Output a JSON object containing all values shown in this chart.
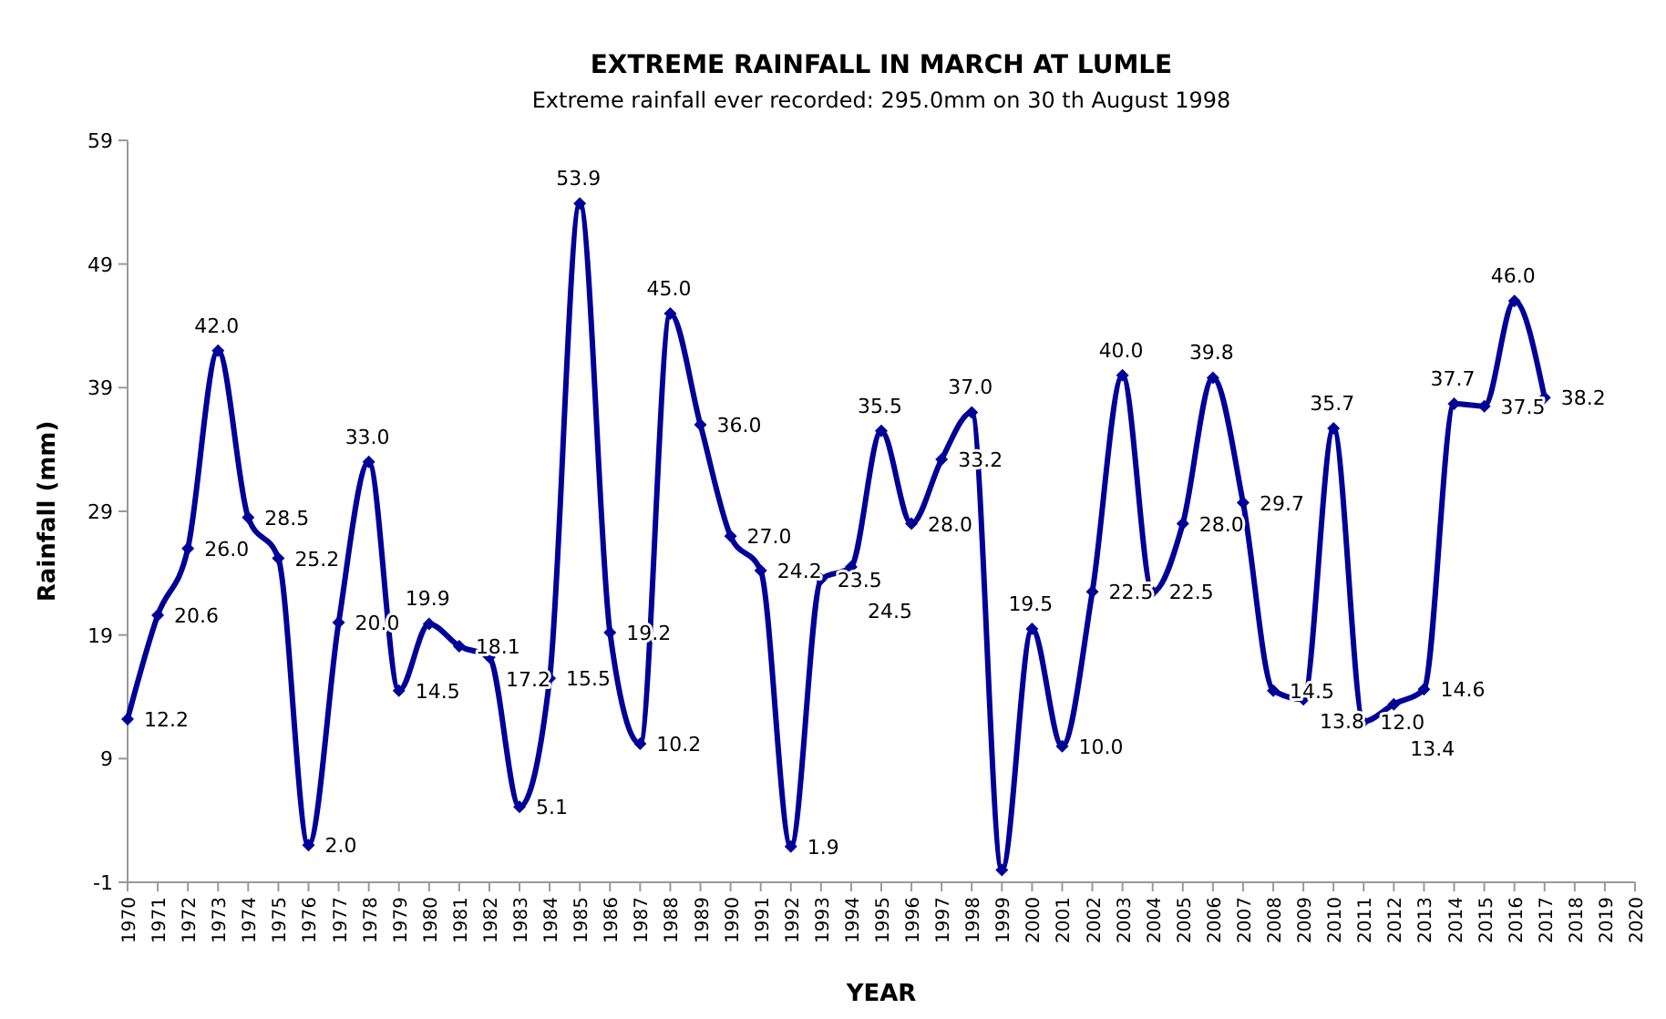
{
  "chart_data": {
    "type": "line",
    "title": "EXTREME RAINFALL IN MARCH AT LUMLE",
    "subtitle": "Extreme rainfall ever recorded: 295.0mm on 30 th August 1998",
    "xlabel": "YEAR",
    "ylabel": "Rainfall (mm)",
    "x": [
      1970,
      1971,
      1972,
      1973,
      1974,
      1975,
      1976,
      1977,
      1978,
      1979,
      1980,
      1981,
      1982,
      1983,
      1984,
      1985,
      1986,
      1987,
      1988,
      1989,
      1990,
      1991,
      1992,
      1993,
      1994,
      1995,
      1996,
      1997,
      1998,
      1999,
      2000,
      2001,
      2002,
      2003,
      2004,
      2005,
      2006,
      2007,
      2008,
      2009,
      2010,
      2011,
      2012,
      2013,
      2014,
      2015,
      2016,
      2017
    ],
    "series": [
      {
        "color": "#000099",
        "values": [
          12.2,
          20.6,
          26.0,
          42.0,
          28.5,
          25.2,
          2.0,
          20.0,
          33.0,
          14.5,
          19.9,
          18.1,
          17.2,
          5.1,
          15.5,
          53.9,
          19.2,
          10.2,
          45.0,
          36.0,
          27.0,
          24.2,
          1.9,
          23.5,
          24.5,
          35.5,
          28.0,
          33.2,
          37.0,
          0,
          19.5,
          10.0,
          22.5,
          40.0,
          22.5,
          28.0,
          39.8,
          29.7,
          14.5,
          13.8,
          35.7,
          12.0,
          13.4,
          14.6,
          37.7,
          37.5,
          46.0,
          38.2
        ],
        "value_labels": [
          "12.2",
          "20.6",
          "26.0",
          "42.0",
          "28.5",
          "25.2",
          "2.0",
          "20.0",
          "33.0",
          "14.5",
          "19.9",
          "18.1",
          "17.2",
          "5.1",
          "15.5",
          "53.9",
          "19.2",
          "10.2",
          "45.0",
          "36.0",
          "27.0",
          "24.2",
          "1.9",
          "23.5",
          "24.5",
          "35.5",
          "28.0",
          "33.2",
          "37.0",
          null,
          "19.5",
          "10.0",
          "22.5",
          "40.0",
          "22.5",
          "28.0",
          "39.8",
          "29.7",
          "14.5",
          "13.8",
          "35.7",
          "12.0",
          "13.4",
          "14.6",
          "37.7",
          "37.5",
          "46.0",
          "38.2"
        ]
      }
    ],
    "xlim": [
      1970,
      2020
    ],
    "xticks": [
      1970,
      1971,
      1972,
      1973,
      1974,
      1975,
      1976,
      1977,
      1978,
      1979,
      1980,
      1981,
      1982,
      1983,
      1984,
      1985,
      1986,
      1987,
      1988,
      1989,
      1990,
      1991,
      1992,
      1993,
      1994,
      1995,
      1996,
      1997,
      1998,
      1999,
      2000,
      2001,
      2002,
      2003,
      2004,
      2005,
      2006,
      2007,
      2008,
      2009,
      2010,
      2011,
      2012,
      2013,
      2014,
      2015,
      2016,
      2017,
      2018,
      2019,
      2020
    ],
    "ylim": [
      -1,
      59
    ],
    "yticks": [
      -1,
      9,
      19,
      29,
      39,
      49,
      59
    ],
    "grid": false,
    "marker": "diamond",
    "line_style": "solid"
  }
}
